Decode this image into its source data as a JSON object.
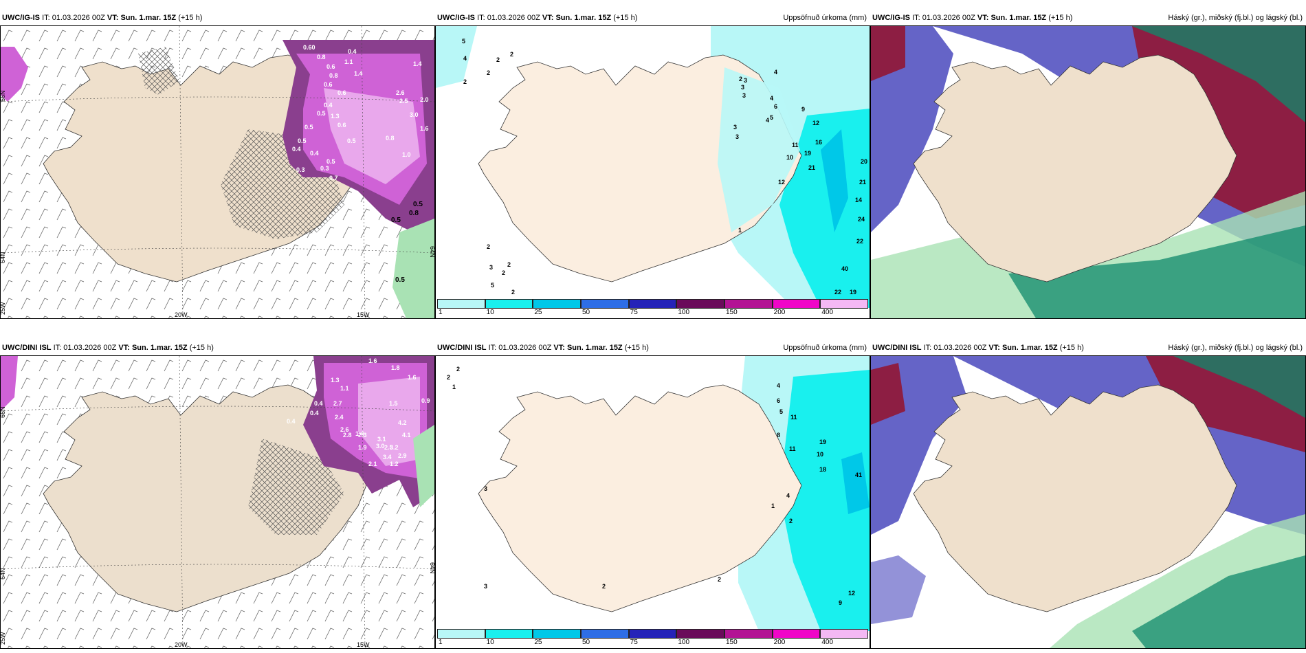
{
  "rows": [
    {
      "model": "UWC/IG-IS",
      "panels": [
        {
          "it_label": "IT:",
          "it_value": "01.03.2026 00Z",
          "vt_label": "VT:",
          "vt_value": "Sun. 1.mar. 15Z",
          "lead": "(+15 h)",
          "right_title": "",
          "lon_labels": [
            "20W",
            "15W"
          ],
          "lat_labels": [
            "66N",
            "64N",
            "64N"
          ],
          "corner_label": "25W",
          "values": [
            {
              "v": "0.4"
            },
            {
              "v": "0.60"
            },
            {
              "v": "0.8"
            },
            {
              "v": "0.4"
            },
            {
              "v": "1.4"
            },
            {
              "v": "0.6"
            },
            {
              "v": "1.1"
            },
            {
              "v": "0.8"
            },
            {
              "v": "0.6"
            },
            {
              "v": "1.4"
            },
            {
              "v": "0.6"
            },
            {
              "v": "0.4"
            },
            {
              "v": "2.6"
            },
            {
              "v": "0.5"
            },
            {
              "v": "2.5"
            },
            {
              "v": "2.0"
            },
            {
              "v": "0.5"
            },
            {
              "v": "1.3"
            },
            {
              "v": "3.0"
            },
            {
              "v": "0.6"
            },
            {
              "v": "0.5"
            },
            {
              "v": "1.6"
            },
            {
              "v": "0.4"
            },
            {
              "v": "0.5"
            },
            {
              "v": "0.4"
            },
            {
              "v": "0.8"
            },
            {
              "v": "0.5"
            },
            {
              "v": "1.0"
            },
            {
              "v": "0.3"
            },
            {
              "v": "0.3"
            },
            {
              "v": "0.7"
            },
            {
              "v": "0.5"
            },
            {
              "v": "0.8"
            },
            {
              "v": "0.5"
            },
            {
              "v": "0.5"
            }
          ]
        },
        {
          "it_label": "IT:",
          "it_value": "01.03.2026 00Z",
          "vt_label": "VT:",
          "vt_value": "Sun. 1.mar. 15Z",
          "lead": "(+15 h)",
          "right_title": "Uppsöfnuð úrkoma (mm)",
          "values": [
            {
              "v": "5"
            },
            {
              "v": "4"
            },
            {
              "v": "2"
            },
            {
              "v": "2"
            },
            {
              "v": "2"
            },
            {
              "v": "2"
            },
            {
              "v": "4"
            },
            {
              "v": "2"
            },
            {
              "v": "3"
            },
            {
              "v": "3"
            },
            {
              "v": "3"
            },
            {
              "v": "6"
            },
            {
              "v": "4"
            },
            {
              "v": "9"
            },
            {
              "v": "3"
            },
            {
              "v": "4"
            },
            {
              "v": "5"
            },
            {
              "v": "12"
            },
            {
              "v": "3"
            },
            {
              "v": "11"
            },
            {
              "v": "16"
            },
            {
              "v": "19"
            },
            {
              "v": "10"
            },
            {
              "v": "21"
            },
            {
              "v": "20"
            },
            {
              "v": "21"
            },
            {
              "v": "12"
            },
            {
              "v": "14"
            },
            {
              "v": "24"
            },
            {
              "v": "22"
            },
            {
              "v": "40"
            },
            {
              "v": "22"
            },
            {
              "v": "19"
            },
            {
              "v": "2"
            },
            {
              "v": "3"
            },
            {
              "v": "2"
            },
            {
              "v": "2"
            },
            {
              "v": "5"
            },
            {
              "v": "2"
            },
            {
              "v": "1"
            }
          ],
          "colorbar": [
            "1",
            "10",
            "25",
            "50",
            "75",
            "100",
            "150",
            "200",
            "400"
          ]
        },
        {
          "it_label": "IT:",
          "it_value": "01.03.2026 00Z",
          "vt_label": "VT:",
          "vt_value": "Sun. 1.mar. 15Z",
          "lead": "(+15 h)",
          "right_title": "Háský (gr.), miðský (fj.bl.) og lágský (bl.)"
        }
      ]
    },
    {
      "model": "UWC/DINI ISL",
      "panels": [
        {
          "it_label": "IT:",
          "it_value": "01.03.2026 00Z",
          "vt_label": "VT:",
          "vt_value": "Sun. 1.mar. 15Z",
          "lead": "(+15 h)",
          "right_title": "",
          "lon_labels": [
            "20W",
            "15W"
          ],
          "lat_labels": [
            "66N",
            "64N",
            "64N"
          ],
          "corner_label": "25W",
          "values": [
            {
              "v": "1.1"
            },
            {
              "v": "1.6"
            },
            {
              "v": "1.8"
            },
            {
              "v": "1.3"
            },
            {
              "v": "1.1"
            },
            {
              "v": "1.6"
            },
            {
              "v": "0.4"
            },
            {
              "v": "0.4"
            },
            {
              "v": "2.7"
            },
            {
              "v": "1.5"
            },
            {
              "v": "2.4"
            },
            {
              "v": "0.4"
            },
            {
              "v": "2.6"
            },
            {
              "v": "1.4"
            },
            {
              "v": "4.2"
            },
            {
              "v": "2.8"
            },
            {
              "v": "2.3"
            },
            {
              "v": "3.1"
            },
            {
              "v": "4.1"
            },
            {
              "v": "1.9"
            },
            {
              "v": "3.0"
            },
            {
              "v": "2.5"
            },
            {
              "v": "3.2"
            },
            {
              "v": "3.4"
            },
            {
              "v": "2.9"
            },
            {
              "v": "2.1"
            },
            {
              "v": "1.2"
            },
            {
              "v": "0.9"
            }
          ]
        },
        {
          "it_label": "IT:",
          "it_value": "01.03.2026 00Z",
          "vt_label": "VT:",
          "vt_value": "Sun. 1.mar. 15Z",
          "lead": "(+15 h)",
          "right_title": "Uppsöfnuð úrkoma (mm)",
          "values": [
            {
              "v": "2"
            },
            {
              "v": "2"
            },
            {
              "v": "1"
            },
            {
              "v": "3"
            },
            {
              "v": "4"
            },
            {
              "v": "6"
            },
            {
              "v": "5"
            },
            {
              "v": "11"
            },
            {
              "v": "8"
            },
            {
              "v": "19"
            },
            {
              "v": "11"
            },
            {
              "v": "10"
            },
            {
              "v": "18"
            },
            {
              "v": "41"
            },
            {
              "v": "4"
            },
            {
              "v": "1"
            },
            {
              "v": "2"
            },
            {
              "v": "3"
            },
            {
              "v": "2"
            },
            {
              "v": "2"
            },
            {
              "v": "12"
            },
            {
              "v": "9"
            }
          ],
          "colorbar": [
            "1",
            "10",
            "25",
            "50",
            "75",
            "100",
            "150",
            "200",
            "400"
          ]
        },
        {
          "it_label": "IT:",
          "it_value": "01.03.2026 00Z",
          "vt_label": "VT:",
          "vt_value": "Sun. 1.mar. 15Z",
          "lead": "(+15 h)",
          "right_title": "Háský (gr.), miðský (fj.bl.) og lágský (bl.)"
        }
      ]
    }
  ],
  "colors": {
    "land": "#efe0cc",
    "land_dini": "#ecdfcd",
    "precip_light": "#e9a8ec",
    "precip_mid": "#cf62d6",
    "precip_dark": "#8a3f8e",
    "precip_border": "#5a2a5a",
    "cyan_light": "#b8f7f7",
    "cyan": "#19f0ee",
    "cloud_high": "#0f8a6b",
    "cloud_high_light": "#a9e2b4",
    "cloud_mid": "#6564c7",
    "cloud_low": "#8d1e43"
  }
}
